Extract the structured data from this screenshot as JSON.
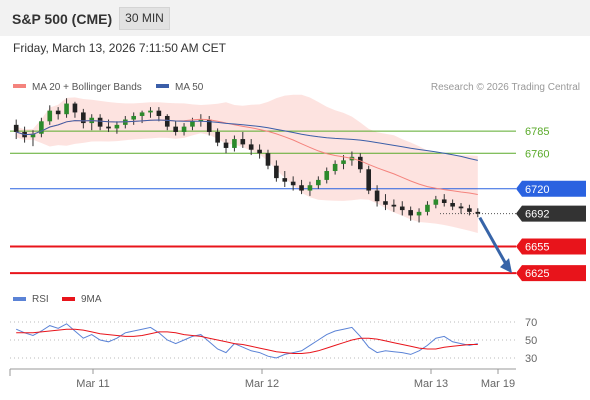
{
  "header": {
    "title": "S&P 500 (CME)",
    "timeframe": "30 MIN",
    "datetime": "Friday, March 13, 2026 7:11:50 AM CET",
    "credit": "Research © 2026 Trading Central"
  },
  "chart_data": [
    {
      "type": "candlestick",
      "legend": [
        {
          "name": "MA 20 + Bollinger Bands",
          "color": "#f4837d"
        },
        {
          "name": "MA 50",
          "color": "#3b5ea8"
        }
      ],
      "ylim": [
        6615,
        6820
      ],
      "x_ticks": [
        "Mar 11",
        "Mar 12",
        "Mar 13",
        "Mar 19"
      ],
      "current_price": {
        "label": "6692",
        "value": 6692,
        "color": "#333333"
      },
      "levels": [
        {
          "label": "6785",
          "value": 6785,
          "kind": "resistance",
          "color": "#5aaa2a"
        },
        {
          "label": "6760",
          "value": 6760,
          "kind": "resistance",
          "color": "#5aaa2a"
        },
        {
          "label": "6720",
          "value": 6720,
          "kind": "pivot",
          "color": "#2a62e0"
        },
        {
          "label": "6655",
          "value": 6655,
          "kind": "support",
          "color": "#e8141b"
        },
        {
          "label": "6625",
          "value": 6625,
          "kind": "support",
          "color": "#e8141b"
        }
      ],
      "projection": {
        "from_value": 6692,
        "to_value": 6625,
        "color": "#3764a8"
      },
      "ohlc": [
        [
          6792,
          6798,
          6776,
          6784
        ],
        [
          6784,
          6790,
          6772,
          6778
        ],
        [
          6778,
          6786,
          6768,
          6782
        ],
        [
          6782,
          6800,
          6778,
          6796
        ],
        [
          6796,
          6814,
          6792,
          6808
        ],
        [
          6808,
          6812,
          6798,
          6804
        ],
        [
          6804,
          6822,
          6800,
          6816
        ],
        [
          6816,
          6818,
          6800,
          6806
        ],
        [
          6806,
          6810,
          6788,
          6794
        ],
        [
          6794,
          6804,
          6786,
          6800
        ],
        [
          6800,
          6804,
          6786,
          6790
        ],
        [
          6790,
          6798,
          6784,
          6788
        ],
        [
          6788,
          6796,
          6782,
          6792
        ],
        [
          6792,
          6802,
          6788,
          6798
        ],
        [
          6798,
          6806,
          6792,
          6802
        ],
        [
          6802,
          6808,
          6794,
          6806
        ],
        [
          6806,
          6812,
          6800,
          6808
        ],
        [
          6808,
          6812,
          6796,
          6802
        ],
        [
          6802,
          6804,
          6786,
          6790
        ],
        [
          6790,
          6796,
          6780,
          6784
        ],
        [
          6784,
          6794,
          6780,
          6790
        ],
        [
          6790,
          6800,
          6786,
          6796
        ],
        [
          6796,
          6804,
          6790,
          6798
        ],
        [
          6798,
          6802,
          6780,
          6784
        ],
        [
          6784,
          6788,
          6768,
          6772
        ],
        [
          6772,
          6776,
          6760,
          6766
        ],
        [
          6766,
          6780,
          6762,
          6776
        ],
        [
          6776,
          6784,
          6766,
          6770
        ],
        [
          6770,
          6776,
          6758,
          6764
        ],
        [
          6764,
          6770,
          6754,
          6760
        ],
        [
          6760,
          6764,
          6742,
          6746
        ],
        [
          6746,
          6752,
          6728,
          6732
        ],
        [
          6732,
          6740,
          6722,
          6728
        ],
        [
          6728,
          6734,
          6718,
          6724
        ],
        [
          6724,
          6730,
          6714,
          6718
        ],
        [
          6718,
          6728,
          6712,
          6724
        ],
        [
          6724,
          6734,
          6720,
          6730
        ],
        [
          6730,
          6744,
          6726,
          6740
        ],
        [
          6740,
          6752,
          6736,
          6748
        ],
        [
          6748,
          6758,
          6742,
          6752
        ],
        [
          6752,
          6762,
          6746,
          6756
        ],
        [
          6756,
          6760,
          6738,
          6742
        ],
        [
          6742,
          6746,
          6714,
          6718
        ],
        [
          6718,
          6724,
          6700,
          6706
        ],
        [
          6706,
          6714,
          6696,
          6702
        ],
        [
          6702,
          6708,
          6694,
          6700
        ],
        [
          6700,
          6706,
          6690,
          6696
        ],
        [
          6696,
          6700,
          6684,
          6690
        ],
        [
          6690,
          6698,
          6682,
          6694
        ],
        [
          6694,
          6706,
          6690,
          6702
        ],
        [
          6702,
          6712,
          6698,
          6708
        ],
        [
          6708,
          6714,
          6700,
          6704
        ],
        [
          6704,
          6708,
          6696,
          6700
        ],
        [
          6700,
          6704,
          6692,
          6698
        ],
        [
          6698,
          6702,
          6690,
          6694
        ],
        [
          6694,
          6698,
          6688,
          6692
        ]
      ]
    },
    {
      "type": "line",
      "legend": [
        {
          "name": "RSI",
          "color": "#5b83d6"
        },
        {
          "name": "9MA",
          "color": "#e8141b"
        }
      ],
      "ylim": [
        25,
        75
      ],
      "y_ticks": [
        70,
        50,
        30
      ],
      "series": [
        {
          "name": "RSI",
          "values": [
            62,
            58,
            55,
            60,
            66,
            63,
            68,
            60,
            52,
            56,
            50,
            48,
            52,
            58,
            60,
            62,
            64,
            58,
            50,
            46,
            50,
            54,
            56,
            48,
            40,
            36,
            46,
            42,
            38,
            36,
            32,
            30,
            34,
            36,
            38,
            44,
            50,
            56,
            60,
            62,
            64,
            54,
            42,
            36,
            38,
            37,
            36,
            34,
            38,
            44,
            52,
            54,
            48,
            46,
            44,
            46
          ]
        },
        {
          "name": "9MA",
          "values": [
            58,
            58,
            58,
            59,
            60,
            61,
            62,
            62,
            61,
            59,
            57,
            56,
            55,
            54,
            54,
            55,
            57,
            59,
            59,
            58,
            56,
            55,
            54,
            52,
            50,
            48,
            46,
            45,
            43,
            41,
            39,
            37,
            36,
            35,
            35,
            36,
            38,
            41,
            44,
            47,
            50,
            52,
            52,
            51,
            49,
            47,
            45,
            43,
            41,
            40,
            40,
            42,
            43,
            44,
            45,
            45
          ]
        }
      ]
    }
  ]
}
